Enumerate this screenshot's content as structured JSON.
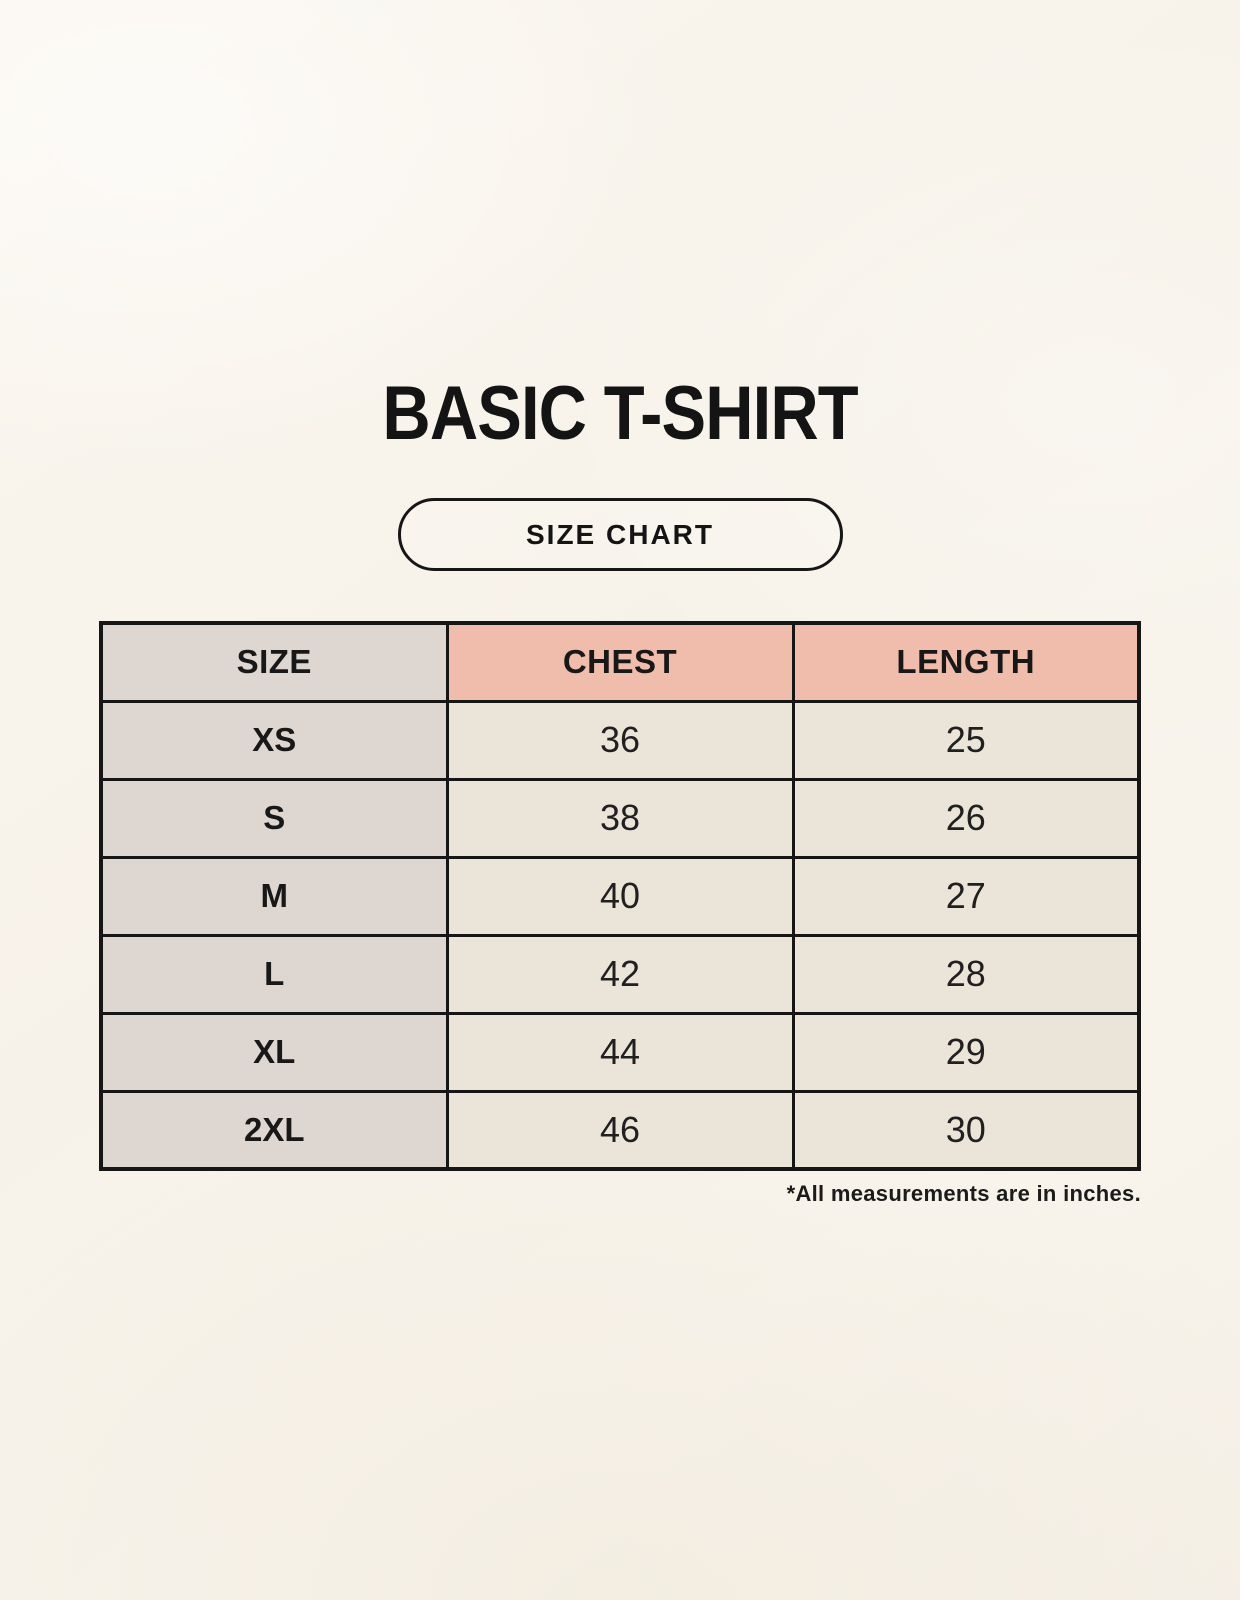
{
  "page": {
    "title": "BASIC T-SHIRT",
    "badge_label": "SIZE CHART",
    "footnote": "*All measurements are in inches."
  },
  "colors": {
    "background": "#f7f2e9",
    "header_accent": "#f0bcab",
    "size_column": "#ddd6d1",
    "value_cell": "#ebe4d9",
    "border": "#161616",
    "text": "#141414"
  },
  "chart_data": {
    "type": "table",
    "title": "BASIC T-SHIRT",
    "subtitle": "SIZE CHART",
    "units_note": "*All measurements are in inches.",
    "columns": [
      "SIZE",
      "CHEST",
      "LENGTH"
    ],
    "rows": [
      [
        "XS",
        36,
        25
      ],
      [
        "S",
        38,
        26
      ],
      [
        "M",
        40,
        27
      ],
      [
        "L",
        42,
        28
      ],
      [
        "XL",
        44,
        29
      ],
      [
        "2XL",
        46,
        30
      ]
    ]
  },
  "table": {
    "columns": {
      "size": "SIZE",
      "chest": "CHEST",
      "length": "LENGTH"
    },
    "rows": [
      {
        "size": "XS",
        "chest": "36",
        "length": "25"
      },
      {
        "size": "S",
        "chest": "38",
        "length": "26"
      },
      {
        "size": "M",
        "chest": "40",
        "length": "27"
      },
      {
        "size": "L",
        "chest": "42",
        "length": "28"
      },
      {
        "size": "XL",
        "chest": "44",
        "length": "29"
      },
      {
        "size": "2XL",
        "chest": "46",
        "length": "30"
      }
    ]
  }
}
